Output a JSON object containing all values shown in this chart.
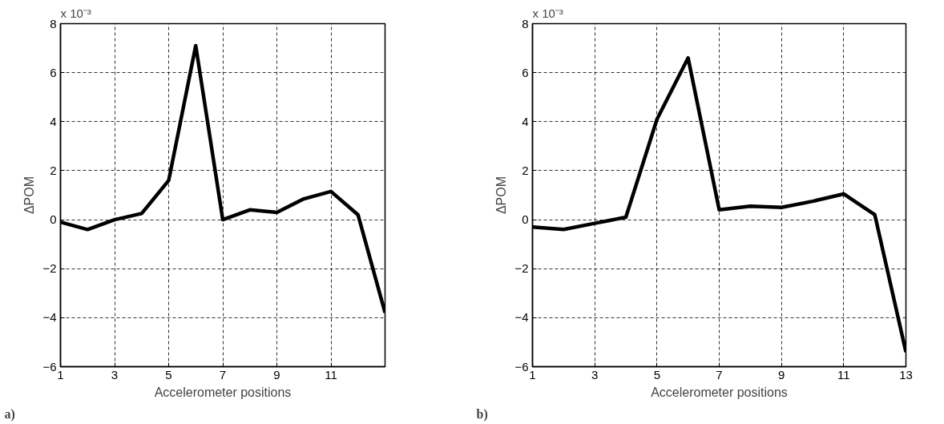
{
  "chart_data": [
    {
      "type": "line",
      "xlabel": "Accelerometer positions",
      "ylabel": "ΔPOM",
      "annotations": [
        "x 10⁻³",
        "a)"
      ],
      "x": [
        1,
        2,
        3,
        4,
        5,
        6,
        7,
        8,
        9,
        10,
        11,
        12,
        13
      ],
      "series": [
        {
          "color": "#000000",
          "values": [
            -0.1,
            -0.4,
            0.0,
            0.25,
            1.6,
            7.1,
            0.0,
            0.4,
            0.3,
            0.85,
            1.15,
            0.2,
            -3.8
          ]
        }
      ],
      "xlim": [
        1,
        13
      ],
      "xticks": [
        1,
        3,
        5,
        7,
        9,
        11
      ],
      "ylim": [
        -6,
        8
      ],
      "yticks": [
        -6,
        -4,
        -2,
        0,
        2,
        4,
        6,
        8
      ],
      "grid": true,
      "line_style": "solid"
    },
    {
      "type": "line",
      "xlabel": "Accelerometer positions",
      "ylabel": "ΔPOM",
      "annotations": [
        "x 10⁻³",
        "b)"
      ],
      "x": [
        1,
        2,
        3,
        4,
        5,
        6,
        7,
        8,
        9,
        10,
        11,
        12,
        13
      ],
      "series": [
        {
          "color": "#000000",
          "values": [
            -0.3,
            -0.4,
            -0.15,
            0.1,
            4.1,
            6.6,
            0.4,
            0.55,
            0.5,
            0.75,
            1.05,
            0.2,
            -5.4
          ]
        }
      ],
      "xlim": [
        1,
        13
      ],
      "xticks": [
        1,
        3,
        5,
        7,
        9,
        11,
        13
      ],
      "ylim": [
        -6,
        8
      ],
      "yticks": [
        -6,
        -4,
        -2,
        0,
        2,
        4,
        6,
        8
      ],
      "grid": true,
      "line_style": "solid"
    }
  ]
}
